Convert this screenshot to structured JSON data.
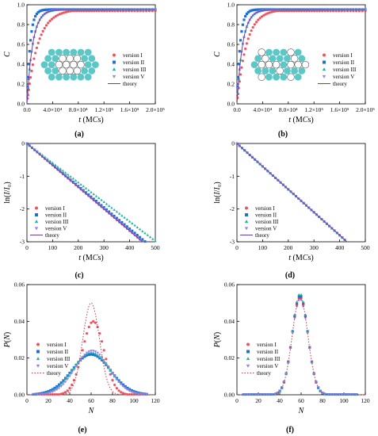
{
  "colors": {
    "version I": "#f0525f",
    "version II": "#1e6fd9",
    "version III": "#1fb39a",
    "version V": "#9a7fe6",
    "theory": "#6b3fa0",
    "theory_dotted": "#c7384a",
    "inset_filled": "#5bc8c7",
    "inset_open": "#ffffff",
    "axis": "#000000"
  },
  "chart_data": [
    {
      "id": "a",
      "type": "scatter",
      "panel_label": "(a)",
      "xlabel": "t (MCs)",
      "ylabel": "C",
      "xlim": [
        0,
        200000
      ],
      "ylim": [
        0,
        1.05
      ],
      "xticks": [
        "0.0",
        "4.0×10⁴",
        "8.0×10⁴",
        "1.2×10⁵",
        "1.6×10⁵",
        "2.0×10⁵"
      ],
      "yticks": [
        "0.0",
        "0.2",
        "0.4",
        "0.6",
        "0.8",
        "1.0"
      ],
      "legend": [
        "version I",
        "version II",
        "version III",
        "version V",
        "theory"
      ],
      "legend_position": "center-right",
      "inset": "lattice with open sites in the middle rows",
      "series": [
        {
          "name": "version I",
          "marker": "circle",
          "tau": 17000,
          "points": 60
        },
        {
          "name": "version II",
          "marker": "square",
          "tau": 5000,
          "points": 60
        },
        {
          "name": "version III",
          "marker": "triangle-up",
          "tau": 9000,
          "points": 60
        },
        {
          "name": "version V",
          "marker": "triangle-down",
          "tau": 9000,
          "points": 60
        },
        {
          "name": "theory",
          "style": "solid",
          "tau": 9000
        }
      ]
    },
    {
      "id": "b",
      "type": "scatter",
      "panel_label": "(b)",
      "xlabel": "t (MCs)",
      "ylabel": "C",
      "xlim": [
        0,
        200000
      ],
      "ylim": [
        0,
        1.05
      ],
      "xticks": [
        "0.0",
        "4.0×10⁴",
        "8.0×10⁴",
        "1.2×10⁵",
        "1.6×10⁵",
        "2.0×10⁵"
      ],
      "yticks": [
        "0.0",
        "0.2",
        "0.4",
        "0.6",
        "0.8",
        "1.0"
      ],
      "legend": [
        "version I",
        "version II",
        "version III",
        "version V",
        "theory"
      ],
      "legend_position": "center-right",
      "inset": "lattice with scattered open sites",
      "series": [
        {
          "name": "version I",
          "marker": "circle",
          "tau": 15000,
          "points": 60
        },
        {
          "name": "version II",
          "marker": "square",
          "tau": 5000,
          "points": 60
        },
        {
          "name": "version III",
          "marker": "triangle-up",
          "tau": 9000,
          "points": 60
        },
        {
          "name": "version V",
          "marker": "triangle-down",
          "tau": 9000,
          "points": 60
        },
        {
          "name": "theory",
          "style": "solid",
          "tau": 9000
        }
      ]
    },
    {
      "id": "c",
      "type": "scatter",
      "panel_label": "(c)",
      "xlabel": "t (MCs)",
      "ylabel": "ln(I/I₀)",
      "xlim": [
        0,
        500
      ],
      "ylim": [
        -3,
        0
      ],
      "xticks": [
        "0",
        "100",
        "200",
        "300",
        "400",
        "500"
      ],
      "yticks": [
        "-3",
        "-2",
        "-1",
        "0"
      ],
      "legend": [
        "version I",
        "version II",
        "version III",
        "version V",
        "theory"
      ],
      "legend_position": "lower-left",
      "series": [
        {
          "name": "version I",
          "marker": "circle",
          "slope": -0.00667
        },
        {
          "name": "version II",
          "marker": "square",
          "slope": -0.0065
        },
        {
          "name": "version III",
          "marker": "triangle-up",
          "slope": -0.00595
        },
        {
          "name": "version V",
          "marker": "triangle-down",
          "slope": -0.00665
        },
        {
          "name": "theory",
          "style": "solid",
          "slope": -0.00667
        }
      ]
    },
    {
      "id": "d",
      "type": "scatter",
      "panel_label": "(d)",
      "xlabel": "t (MCs)",
      "ylabel": "ln(I/I₀)",
      "xlim": [
        0,
        500
      ],
      "ylim": [
        -3,
        0
      ],
      "xticks": [
        "0",
        "100",
        "200",
        "300",
        "400",
        "500"
      ],
      "yticks": [
        "-3",
        "-2",
        "-1",
        "0"
      ],
      "legend": [
        "version I",
        "version II",
        "version III",
        "version V",
        "theory"
      ],
      "legend_position": "lower-left",
      "series": [
        {
          "name": "version I",
          "marker": "circle",
          "slope": -0.007
        },
        {
          "name": "version II",
          "marker": "square",
          "slope": -0.007
        },
        {
          "name": "version III",
          "marker": "triangle-up",
          "slope": -0.007
        },
        {
          "name": "version V",
          "marker": "triangle-down",
          "slope": -0.007
        },
        {
          "name": "theory",
          "style": "solid",
          "slope": -0.007
        }
      ]
    },
    {
      "id": "e",
      "type": "scatter",
      "panel_label": "(e)",
      "xlabel": "N",
      "ylabel": "P(N)",
      "xlim": [
        0,
        120
      ],
      "ylim": [
        0,
        0.06
      ],
      "xticks": [
        "0",
        "20",
        "40",
        "60",
        "80",
        "100",
        "120"
      ],
      "yticks": [
        "0.00",
        "0.02",
        "0.04",
        "0.06"
      ],
      "legend": [
        "version I",
        "version II",
        "version III",
        "version V",
        "theory"
      ],
      "legend_position": "center-left",
      "series": [
        {
          "name": "version I",
          "marker": "circle",
          "mean": 62,
          "sd": 10,
          "amp": 0.04
        },
        {
          "name": "version II",
          "marker": "square",
          "mean": 60,
          "sd": 18,
          "amp": 0.022
        },
        {
          "name": "version III",
          "marker": "triangle-up",
          "mean": 60,
          "sd": 17,
          "amp": 0.023
        },
        {
          "name": "version V",
          "marker": "triangle-down",
          "mean": 61,
          "sd": 16,
          "amp": 0.024
        },
        {
          "name": "theory",
          "style": "dotted",
          "mean": 60,
          "sd": 7.8,
          "amp": 0.05
        }
      ]
    },
    {
      "id": "f",
      "type": "scatter",
      "panel_label": "(f)",
      "xlabel": "N",
      "ylabel": "P(N)",
      "xlim": [
        0,
        120
      ],
      "ylim": [
        0,
        0.06
      ],
      "xticks": [
        "0",
        "20",
        "40",
        "60",
        "80",
        "100",
        "120"
      ],
      "yticks": [
        "0.00",
        "0.02",
        "0.04",
        "0.06"
      ],
      "legend": [
        "version I",
        "version II",
        "version III",
        "version V",
        "theory"
      ],
      "legend_position": "center-left",
      "series": [
        {
          "name": "version I",
          "marker": "circle",
          "mean": 59,
          "sd": 7.5,
          "amp": 0.053
        },
        {
          "name": "version II",
          "marker": "square",
          "mean": 59,
          "sd": 7.4,
          "amp": 0.054
        },
        {
          "name": "version III",
          "marker": "triangle-up",
          "mean": 59,
          "sd": 7.3,
          "amp": 0.055
        },
        {
          "name": "version V",
          "marker": "triangle-down",
          "mean": 59,
          "sd": 7.5,
          "amp": 0.052
        },
        {
          "name": "theory",
          "style": "dotted",
          "mean": 59,
          "sd": 7.4,
          "amp": 0.053
        }
      ]
    }
  ]
}
